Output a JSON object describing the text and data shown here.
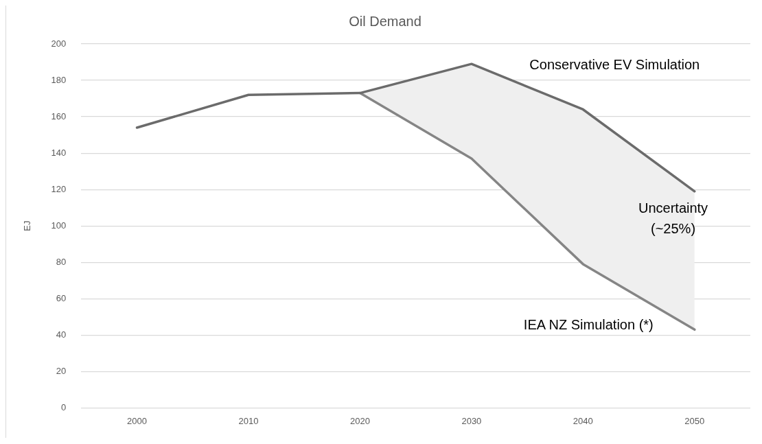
{
  "chart_data": {
    "type": "line",
    "title": "Oil Demand",
    "ylabel": "EJ",
    "categories": [
      "2000",
      "2010",
      "2020",
      "2030",
      "2040",
      "2050"
    ],
    "series": [
      {
        "name": "Conservative EV Simulation",
        "color": "#6b6b6b",
        "values": [
          154,
          172,
          173,
          189,
          164,
          119
        ],
        "lower": [
          null,
          null,
          173,
          137,
          79,
          43
        ],
        "upper": [
          null,
          null,
          173,
          189,
          164,
          119
        ]
      },
      {
        "name": "IEA NZ Simulation (*)",
        "color": "#858585",
        "values": [
          null,
          null,
          173,
          137,
          79,
          43
        ]
      }
    ],
    "ylim": [
      0,
      200
    ],
    "yticks": [
      0,
      20,
      40,
      60,
      80,
      100,
      120,
      140,
      160,
      180,
      200
    ],
    "grid": "y",
    "legend": false,
    "marker": "none",
    "line_style": "solid",
    "annotations": [
      "Uncertainty (~25%)"
    ]
  }
}
